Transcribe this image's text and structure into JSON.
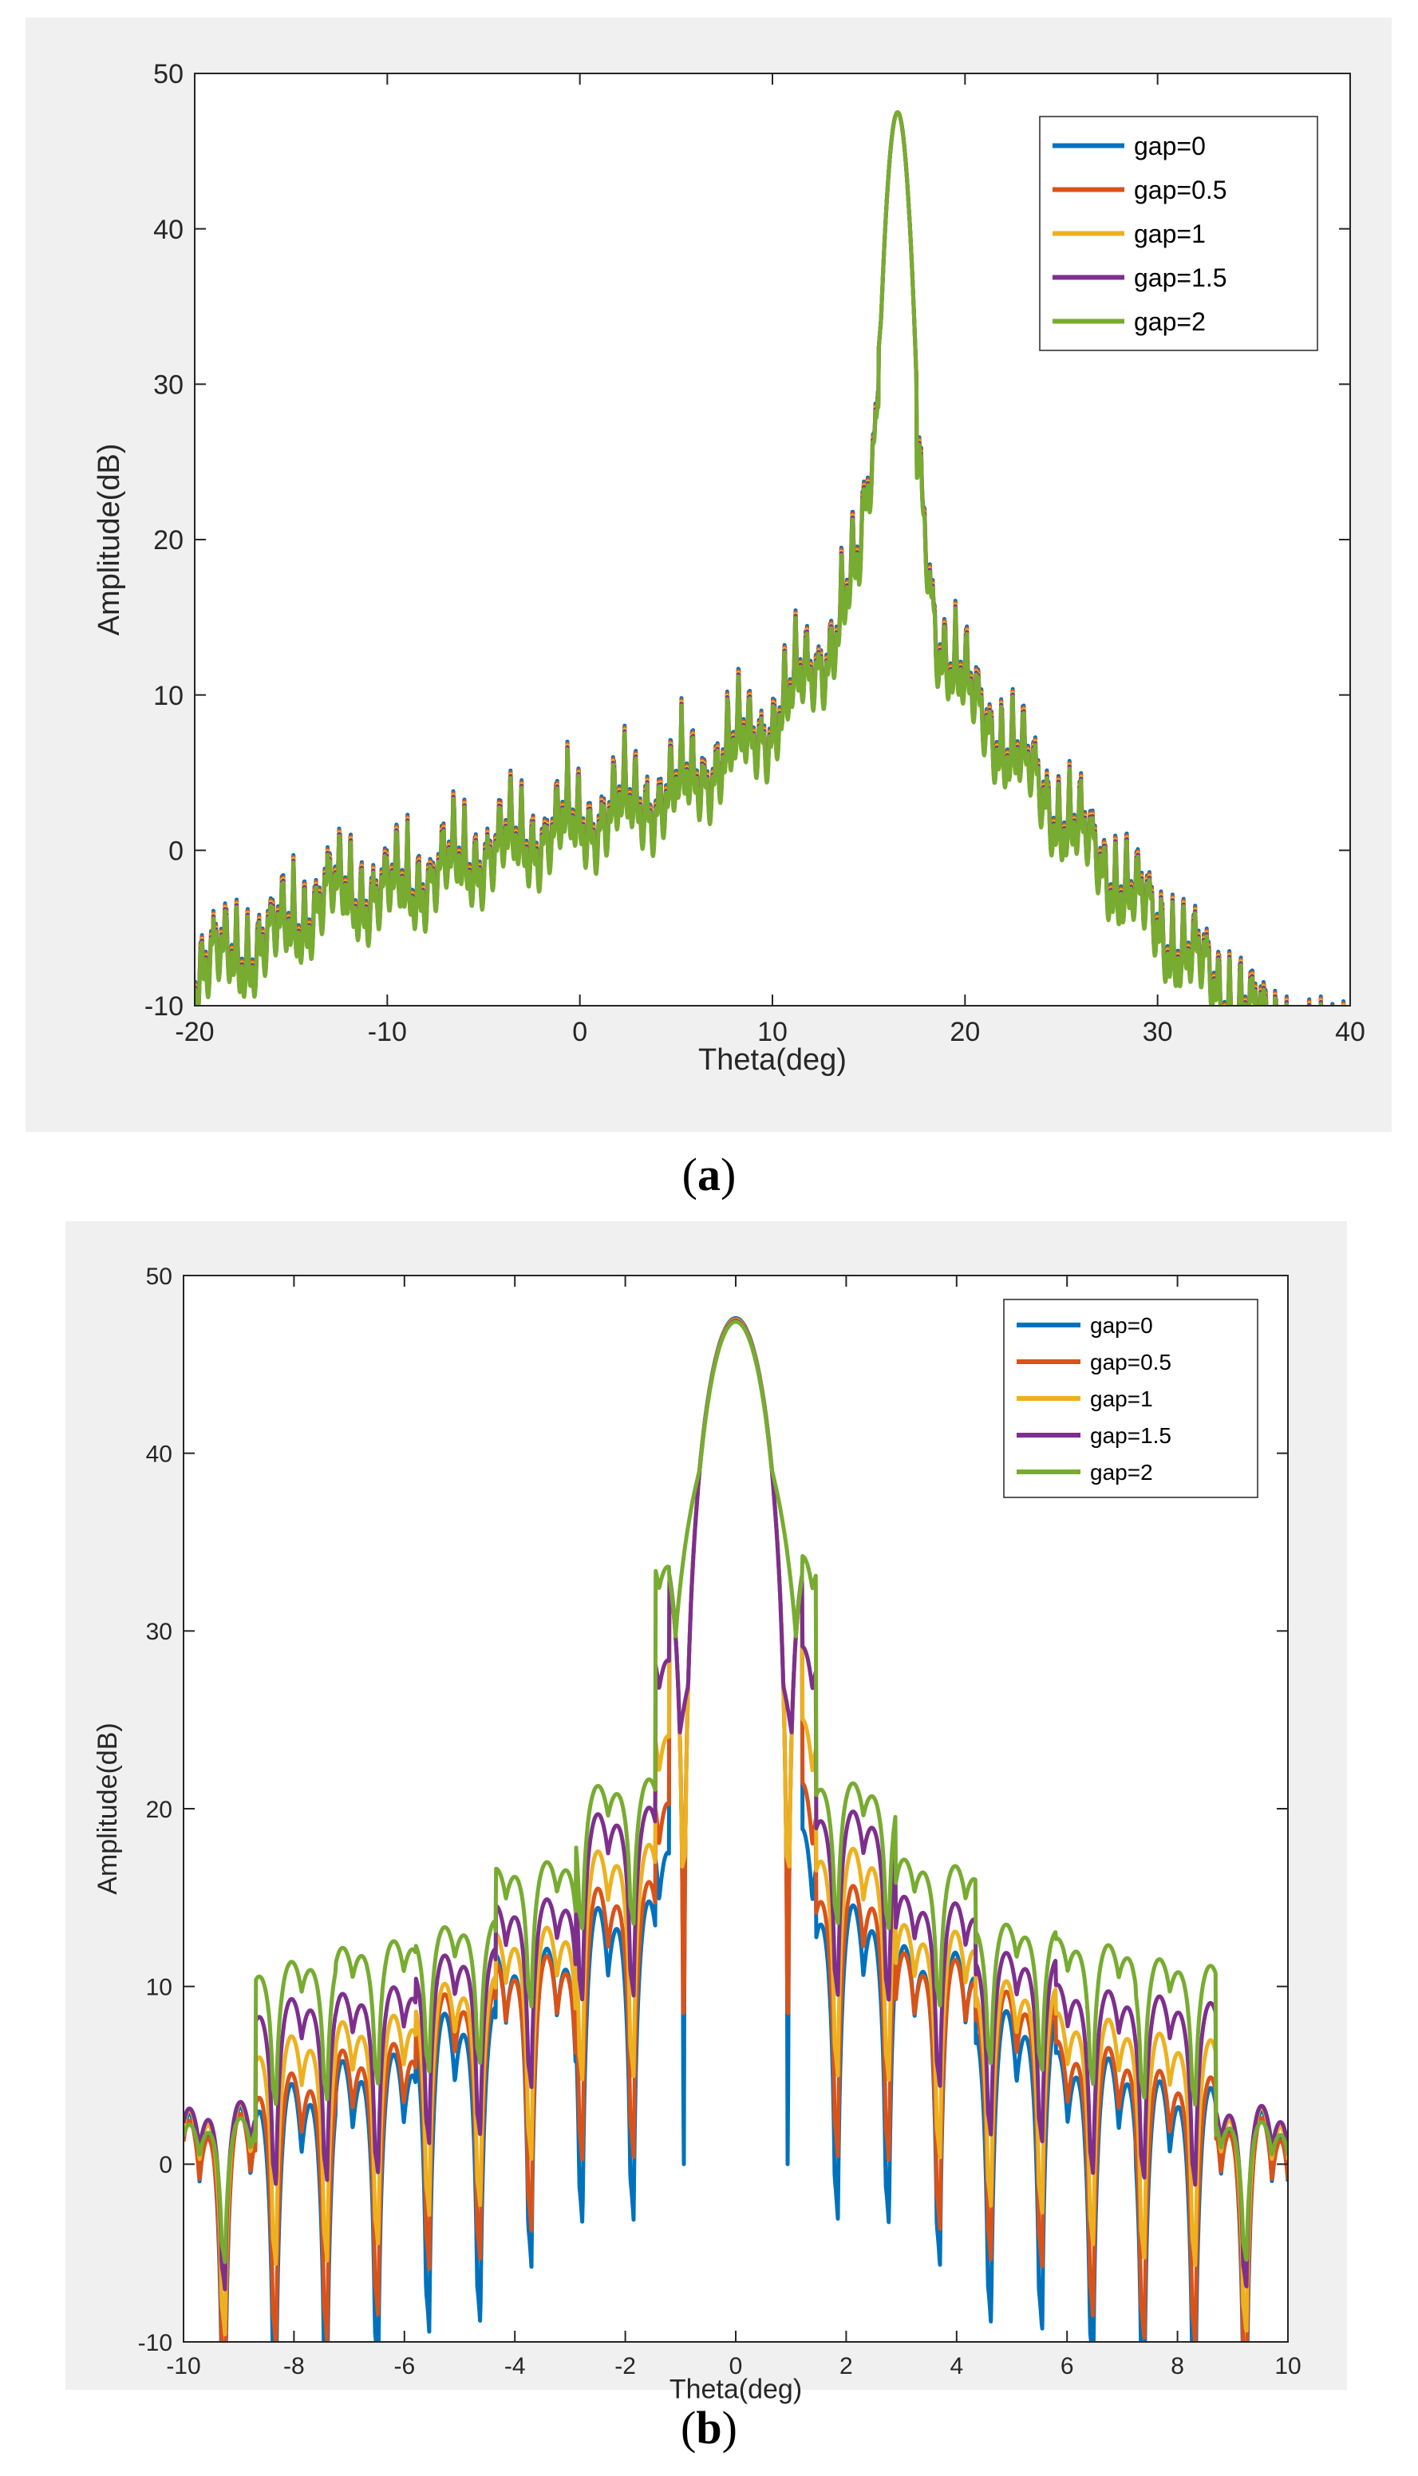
{
  "chart_data": [
    {
      "type": "line",
      "panel": "a",
      "caption": "a",
      "title": "",
      "xlabel": "Theta(deg)",
      "ylabel": "Amplitude(dB)",
      "xlim": [
        -20,
        40
      ],
      "ylim": [
        -10,
        50
      ],
      "xticks": [
        -20,
        -10,
        0,
        10,
        20,
        30,
        40
      ],
      "yticks": [
        -10,
        0,
        10,
        20,
        30,
        40,
        50
      ],
      "xtick_labels": [
        "-20",
        "-10",
        "0",
        "10",
        "20",
        "30",
        "40"
      ],
      "ytick_labels": [
        "-10",
        "0",
        "10",
        "20",
        "30",
        "40",
        "50"
      ],
      "grid": false,
      "legend": "top-right",
      "series": [
        {
          "name": "gap=0",
          "color": "#0072bd"
        },
        {
          "name": "gap=0.5",
          "color": "#d95319"
        },
        {
          "name": "gap=1",
          "color": "#edb120"
        },
        {
          "name": "gap=1.5",
          "color": "#7e2f8e"
        },
        {
          "name": "gap=2",
          "color": "#77ac30"
        }
      ],
      "peak": {
        "x": 16.5,
        "y": 47.5
      },
      "envelope": {
        "x": [
          -20,
          -16,
          -13,
          -10,
          -5,
          0,
          5,
          10,
          13,
          14.5,
          15.5,
          16.5,
          17.5,
          18.5,
          20,
          25,
          30,
          34,
          37
        ],
        "y": [
          -5,
          -3,
          0,
          0,
          2.5,
          4.5,
          6.5,
          11,
          16,
          21,
          32,
          47.5,
          28,
          17,
          13,
          5,
          -2,
          -7,
          -10
        ]
      }
    },
    {
      "type": "line",
      "panel": "b",
      "caption": "b",
      "title": "",
      "xlabel": "Theta(deg)",
      "ylabel": "Amplitude(dB)",
      "xlim": [
        -10,
        10
      ],
      "ylim": [
        -10,
        50
      ],
      "xticks": [
        -10,
        -8,
        -6,
        -4,
        -2,
        0,
        2,
        4,
        6,
        8,
        10
      ],
      "yticks": [
        -10,
        0,
        10,
        20,
        30,
        40,
        50
      ],
      "xtick_labels": [
        "-10",
        "-8",
        "-6",
        "-4",
        "-2",
        "0",
        "2",
        "4",
        "6",
        "8",
        "10"
      ],
      "ytick_labels": [
        "-10",
        "0",
        "10",
        "20",
        "30",
        "40",
        "50"
      ],
      "grid": false,
      "legend": "top-right",
      "series": [
        {
          "name": "gap=0",
          "color": "#0072bd",
          "sidelobe_peaks_db": [
            20,
            15.5,
            13,
            9.5,
            7,
            5.5,
            4
          ]
        },
        {
          "name": "gap=0.5",
          "color": "#d95319",
          "sidelobe_peaks_db": [
            22.5,
            16.5,
            12.5,
            10.5,
            7.5,
            6,
            3.5
          ]
        },
        {
          "name": "gap=1",
          "color": "#edb120",
          "sidelobe_peaks_db": [
            26,
            18.5,
            14,
            11,
            9,
            8,
            4
          ]
        },
        {
          "name": "gap=1.5",
          "color": "#7e2f8e",
          "sidelobe_peaks_db": [
            30,
            20.5,
            15.5,
            12.5,
            10.5,
            10,
            4
          ]
        },
        {
          "name": "gap=2",
          "color": "#77ac30",
          "sidelobe_peaks_db": [
            35,
            22,
            17.5,
            14,
            13,
            12,
            3
          ]
        }
      ],
      "main_lobe": {
        "x": 0,
        "y": 47.5
      }
    }
  ],
  "captions": {
    "a": "a",
    "b": "b"
  }
}
